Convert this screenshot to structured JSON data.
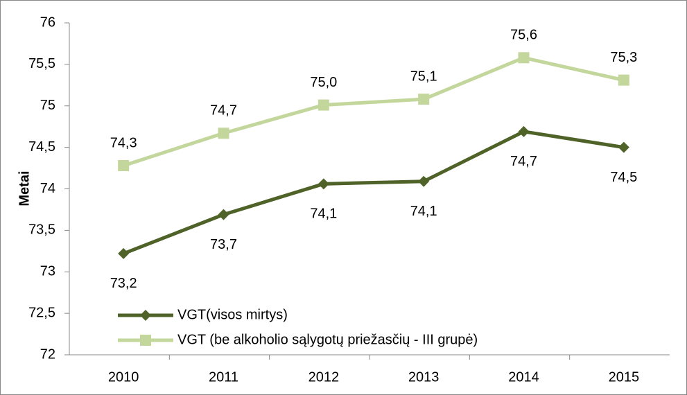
{
  "chart_data": {
    "type": "line",
    "y_label": "Metai",
    "categories": [
      "2010",
      "2011",
      "2012",
      "2013",
      "2014",
      "2015"
    ],
    "series": [
      {
        "name": "VGT(visos mirtys)",
        "color": "#4f6228",
        "marker": "diamond",
        "values": [
          73.22,
          73.69,
          74.06,
          74.09,
          74.69,
          74.5
        ],
        "value_labels": [
          "73,2",
          "73,7",
          "74,1",
          "74,1",
          "74,7",
          "74,5"
        ]
      },
      {
        "name": "VGT (be alkoholio sąlygotų priežasčių - III grupė)",
        "color": "#c3d69b",
        "marker": "square",
        "values": [
          74.28,
          74.67,
          75.01,
          75.08,
          75.58,
          75.31
        ],
        "value_labels": [
          "74,3",
          "74,7",
          "75,0",
          "75,1",
          "75,6",
          "75,3"
        ]
      }
    ],
    "ylim": [
      72,
      76
    ],
    "yticks": [
      72,
      {
        "value": 72.5,
        "label": "72,5"
      },
      73,
      {
        "value": 73.5,
        "label": "73,5"
      },
      74,
      {
        "value": 74.5,
        "label": "74,5"
      },
      75,
      {
        "value": 75.5,
        "label": "75,5"
      },
      76
    ],
    "grid": false,
    "legend": "lower left"
  }
}
